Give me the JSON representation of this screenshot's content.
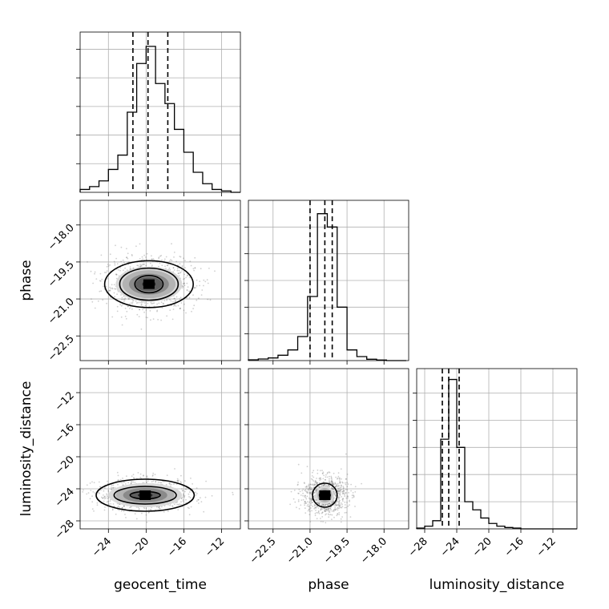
{
  "chart_data": {
    "type": "corner",
    "parameters": [
      {
        "name": "geocent_time",
        "label": "geocent_time",
        "range": [
          -27,
          -10
        ],
        "ticks": [
          -24,
          -20,
          -16,
          -12
        ],
        "tick_labels": [
          "−24",
          "−20",
          "−16",
          "−12"
        ],
        "quantiles": [
          -21.4,
          -19.8,
          -17.7
        ],
        "hist_bins": [
          -27,
          -26,
          -25,
          -24,
          -23,
          -22,
          -21,
          -20,
          -19,
          -18,
          -17,
          -16,
          -15,
          -14,
          -13,
          -12,
          -11,
          -10
        ],
        "hist_counts": [
          1,
          2,
          4,
          8,
          13,
          28,
          45,
          51,
          38,
          31,
          22,
          14,
          7,
          3,
          1,
          0.5,
          0
        ]
      },
      {
        "name": "phase",
        "label": "phase",
        "range": [
          -23.5,
          -17.0
        ],
        "ticks": [
          -22.5,
          -21.0,
          -19.5,
          -18.0
        ],
        "tick_labels": [
          "−22.5",
          "−21.0",
          "−19.5",
          "−18.0"
        ],
        "quantiles": [
          -21.0,
          -20.4,
          -20.1
        ],
        "hist_bins": [
          -23.5,
          -23.1,
          -22.7,
          -22.3,
          -21.9,
          -21.5,
          -21.1,
          -20.7,
          -20.3,
          -19.9,
          -19.5,
          -19.1,
          -18.7,
          -18.3,
          -17.9,
          -17.5,
          -17.1
        ],
        "hist_counts": [
          0.3,
          0.6,
          1,
          2,
          4,
          9,
          24,
          55,
          50,
          20,
          4,
          1.5,
          0.5,
          0.2,
          0,
          0
        ]
      },
      {
        "name": "luminosity_distance",
        "label": "luminosity_distance",
        "range": [
          -29,
          -9
        ],
        "ticks": [
          -28,
          -24,
          -20,
          -16,
          -12
        ],
        "tick_labels": [
          "−28",
          "−24",
          "−20",
          "−16",
          "−12"
        ],
        "quantiles": [
          -25.8,
          -25.0,
          -23.7
        ],
        "hist_bins": [
          -29,
          -28,
          -27,
          -26,
          -25,
          -24,
          -23,
          -22,
          -21,
          -20,
          -19,
          -18,
          -17,
          -16,
          -15,
          -14,
          -13,
          -12,
          -11,
          -10,
          -9
        ],
        "hist_counts": [
          0.3,
          1,
          3,
          33,
          55,
          30,
          10,
          7,
          4,
          2,
          1,
          0.5,
          0.3,
          0,
          0,
          0,
          0,
          0,
          0,
          0
        ]
      }
    ],
    "hist_ymax": [
      56,
      60,
      59
    ],
    "hist_yticks": [
      [
        10,
        20,
        30,
        40,
        50
      ],
      [
        10,
        20,
        30,
        40,
        50
      ],
      [
        10,
        20,
        30,
        40,
        50
      ]
    ],
    "pairs": [
      {
        "x": 0,
        "y": 1,
        "center": [
          -19.7,
          -20.4
        ],
        "spread": [
          2.4,
          0.55
        ],
        "contours": [
          [
            1.5,
            0.35
          ],
          [
            3.1,
            0.65
          ],
          [
            4.7,
            0.95
          ]
        ]
      },
      {
        "x": 0,
        "y": 2,
        "center": [
          -20.1,
          -24.8
        ],
        "spread": [
          2.6,
          1.0
        ],
        "contours": [
          [
            1.6,
            0.45
          ],
          [
            3.3,
            1.1
          ],
          [
            5.2,
            2.0
          ]
        ]
      },
      {
        "x": 1,
        "y": 2,
        "center": [
          -20.4,
          -24.8
        ],
        "spread": [
          0.45,
          1.2
        ],
        "contours": [
          [
            0.22,
            0.45
          ],
          [
            0.5,
            1.5
          ]
        ]
      }
    ],
    "grid": true
  }
}
